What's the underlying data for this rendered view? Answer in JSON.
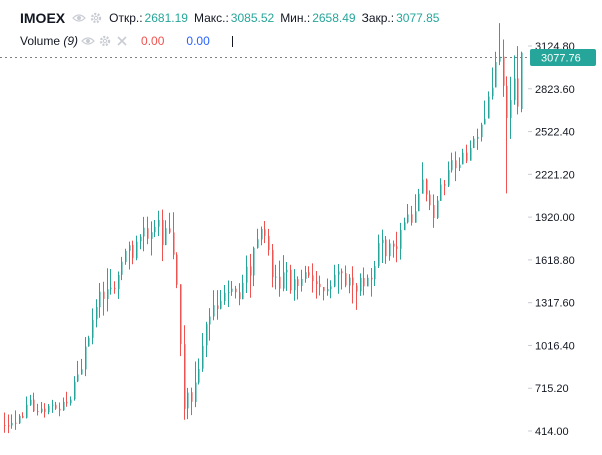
{
  "legend": {
    "symbol": "IMOEX",
    "open_label": "Откр.:",
    "open": "2681.19",
    "high_label": "Макс.:",
    "high": "3085.52",
    "low_label": "Мин.:",
    "low": "2658.49",
    "close_label": "Закр.:",
    "close": "3077.85"
  },
  "volume": {
    "title": "Volume",
    "length": "(9)",
    "value_a": "0.00",
    "value_b": "0.00"
  },
  "icons": [
    "eye-icon",
    "gear-icon",
    "eye-icon",
    "gear-icon",
    "close-icon"
  ],
  "colors": {
    "up": "#26a69a",
    "down": "#ef5350",
    "price_badge": "#26a69a",
    "volume_ma": "#2962ff"
  },
  "chart_data": {
    "type": "candlestick",
    "symbol": "IMOEX",
    "y_ticks": [
      "414.00",
      "715.20",
      "1016.40",
      "1317.60",
      "1618.80",
      "1920.00",
      "2221.20",
      "2522.40",
      "2823.60",
      "3124.80"
    ],
    "ylim": [
      380,
      3300
    ],
    "last_price": "3077.76",
    "last_candle": {
      "open": 2681.19,
      "high": 3085.52,
      "low": 2658.49,
      "close": 3077.85
    },
    "candles": [
      [
        456,
        454,
        544,
        402
      ],
      [
        454,
        453,
        530,
        399
      ],
      [
        453,
        471,
        531,
        430
      ],
      [
        472,
        468,
        559,
        422
      ],
      [
        468,
        520,
        533,
        463
      ],
      [
        519,
        507,
        546,
        504
      ],
      [
        507,
        600,
        657,
        502
      ],
      [
        598,
        635,
        668,
        591
      ],
      [
        635,
        552,
        684,
        548
      ],
      [
        554,
        549,
        606,
        523
      ],
      [
        549,
        571,
        618,
        538
      ],
      [
        571,
        548,
        610,
        508
      ],
      [
        547,
        591,
        604,
        532
      ],
      [
        592,
        599,
        633,
        542
      ],
      [
        599,
        571,
        619,
        563
      ],
      [
        570,
        559,
        615,
        518
      ],
      [
        560,
        619,
        650,
        556
      ],
      [
        620,
        609,
        690,
        585
      ],
      [
        608,
        636,
        658,
        593
      ],
      [
        638,
        762,
        800,
        628
      ],
      [
        763,
        812,
        908,
        758
      ],
      [
        812,
        849,
        922,
        810
      ],
      [
        848,
        1009,
        1076,
        800
      ],
      [
        1010,
        1071,
        1085,
        1007
      ],
      [
        1070,
        1197,
        1277,
        1025
      ],
      [
        1200,
        1287,
        1342,
        1144
      ],
      [
        1285,
        1395,
        1456,
        1211
      ],
      [
        1395,
        1344,
        1465,
        1226
      ],
      [
        1343,
        1412,
        1560,
        1255
      ],
      [
        1412,
        1424,
        1555,
        1374
      ],
      [
        1422,
        1413,
        1468,
        1380
      ],
      [
        1412,
        1512,
        1537,
        1344
      ],
      [
        1513,
        1606,
        1640,
        1476
      ],
      [
        1604,
        1682,
        1697,
        1585
      ],
      [
        1683,
        1722,
        1747,
        1551
      ],
      [
        1724,
        1633,
        1754,
        1588
      ],
      [
        1631,
        1748,
        1790,
        1616
      ],
      [
        1749,
        1783,
        1800,
        1694
      ],
      [
        1784,
        1846,
        1922,
        1680
      ],
      [
        1842,
        1768,
        1923,
        1729
      ],
      [
        1767,
        1814,
        1890,
        1650
      ],
      [
        1813,
        1852,
        1900,
        1779
      ],
      [
        1852,
        1900,
        1965,
        1786
      ],
      [
        1900,
        1723,
        1973,
        1610
      ],
      [
        1723,
        1842,
        1898,
        1723
      ],
      [
        1841,
        1811,
        1951,
        1802
      ],
      [
        1812,
        1655,
        1954,
        1623
      ],
      [
        1656,
        1444,
        1673,
        1420
      ],
      [
        1447,
        1026,
        1447,
        941
      ],
      [
        1025,
        570,
        1159,
        493
      ],
      [
        573,
        684,
        718,
        498
      ],
      [
        687,
        620,
        719,
        526
      ],
      [
        618,
        755,
        903,
        582
      ],
      [
        754,
        851,
        925,
        741
      ],
      [
        852,
        1014,
        1104,
        830
      ],
      [
        1016,
        1166,
        1183,
        934
      ],
      [
        1164,
        1220,
        1279,
        1050
      ],
      [
        1220,
        1300,
        1405,
        1194
      ],
      [
        1298,
        1274,
        1406,
        1197
      ],
      [
        1275,
        1331,
        1407,
        1270
      ],
      [
        1329,
        1387,
        1442,
        1302
      ],
      [
        1387,
        1392,
        1474,
        1287
      ],
      [
        1394,
        1416,
        1470,
        1365
      ],
      [
        1416,
        1391,
        1436,
        1347
      ],
      [
        1391,
        1342,
        1455,
        1299
      ],
      [
        1342,
        1458,
        1514,
        1342
      ],
      [
        1458,
        1572,
        1650,
        1386
      ],
      [
        1573,
        1508,
        1661,
        1352
      ],
      [
        1509,
        1704,
        1712,
        1434
      ],
      [
        1703,
        1764,
        1838,
        1698
      ],
      [
        1763,
        1836,
        1854,
        1722
      ],
      [
        1834,
        1788,
        1893,
        1737
      ],
      [
        1788,
        1689,
        1837,
        1649
      ],
      [
        1689,
        1497,
        1731,
        1425
      ],
      [
        1498,
        1501,
        1585,
        1411
      ],
      [
        1500,
        1416,
        1614,
        1359
      ],
      [
        1417,
        1531,
        1652,
        1398
      ],
      [
        1531,
        1550,
        1604,
        1401
      ],
      [
        1548,
        1405,
        1585,
        1380
      ],
      [
        1405,
        1483,
        1554,
        1331
      ],
      [
        1483,
        1435,
        1503,
        1340
      ],
      [
        1436,
        1485,
        1549,
        1395
      ],
      [
        1485,
        1532,
        1577,
        1458
      ],
      [
        1532,
        1509,
        1574,
        1492
      ],
      [
        1509,
        1469,
        1594,
        1388
      ],
      [
        1468,
        1449,
        1541,
        1346
      ],
      [
        1450,
        1427,
        1508,
        1368
      ],
      [
        1428,
        1398,
        1425,
        1334
      ],
      [
        1398,
        1413,
        1488,
        1366
      ],
      [
        1412,
        1433,
        1475,
        1349
      ],
      [
        1431,
        1515,
        1585,
        1426
      ],
      [
        1514,
        1538,
        1590,
        1380
      ],
      [
        1539,
        1525,
        1558,
        1410
      ],
      [
        1525,
        1439,
        1579,
        1426
      ],
      [
        1438,
        1494,
        1519,
        1384
      ],
      [
        1494,
        1440,
        1574,
        1312
      ],
      [
        1439,
        1396,
        1456,
        1267
      ],
      [
        1397,
        1492,
        1524,
        1365
      ],
      [
        1491,
        1433,
        1565,
        1369
      ],
      [
        1432,
        1493,
        1516,
        1440
      ],
      [
        1493,
        1482,
        1562,
        1360
      ],
      [
        1482,
        1575,
        1612,
        1435
      ],
      [
        1575,
        1737,
        1797,
        1562
      ],
      [
        1736,
        1761,
        1832,
        1597
      ],
      [
        1762,
        1645,
        1787,
        1591
      ],
      [
        1645,
        1735,
        1763,
        1613
      ],
      [
        1733,
        1712,
        1755,
        1635
      ],
      [
        1714,
        1697,
        1817,
        1602
      ],
      [
        1697,
        1829,
        1879,
        1621
      ],
      [
        1828,
        1884,
        1916,
        1849
      ],
      [
        1883,
        1939,
        2012,
        1875
      ],
      [
        1940,
        1880,
        1999,
        1860
      ],
      [
        1880,
        1960,
        2081,
        1896
      ],
      [
        1961,
        2085,
        2119,
        1975
      ],
      [
        2085,
        2185,
        2306,
        2085
      ],
      [
        2184,
        2079,
        2192,
        2031
      ],
      [
        2079,
        2003,
        2108,
        1969
      ],
      [
        2005,
        1913,
        2080,
        1844
      ],
      [
        1914,
        2037,
        2069,
        1907
      ],
      [
        2034,
        2150,
        2194,
        2035
      ],
      [
        2151,
        2142,
        2181,
        2074
      ],
      [
        2142,
        2251,
        2312,
        2132
      ],
      [
        2250,
        2321,
        2374,
        2234
      ],
      [
        2320,
        2264,
        2382,
        2173
      ],
      [
        2266,
        2289,
        2341,
        2245
      ],
      [
        2291,
        2374,
        2401,
        2337
      ],
      [
        2374,
        2317,
        2430,
        2300
      ],
      [
        2317,
        2406,
        2460,
        2358
      ],
      [
        2406,
        2472,
        2491,
        2443
      ],
      [
        2471,
        2485,
        2543,
        2393
      ],
      [
        2483,
        2571,
        2584,
        2452
      ],
      [
        2572,
        2613,
        2741,
        2578
      ],
      [
        2614,
        2770,
        2805,
        2629
      ],
      [
        2770,
        2832,
        2973,
        2747
      ],
      [
        2833,
        3012,
        3084,
        2907
      ],
      [
        3014,
        3050,
        3286,
        2990
      ],
      [
        3050,
        2845,
        3171,
        2767
      ],
      [
        2844,
        2617,
        2911,
        2087
      ],
      [
        2618,
        2744,
        2908,
        2471
      ],
      [
        2743,
        2897,
        3059,
        2711
      ],
      [
        2897,
        2698,
        3124,
        2643
      ],
      [
        2681.19,
        3077.85,
        3085.52,
        2658.49
      ]
    ]
  }
}
